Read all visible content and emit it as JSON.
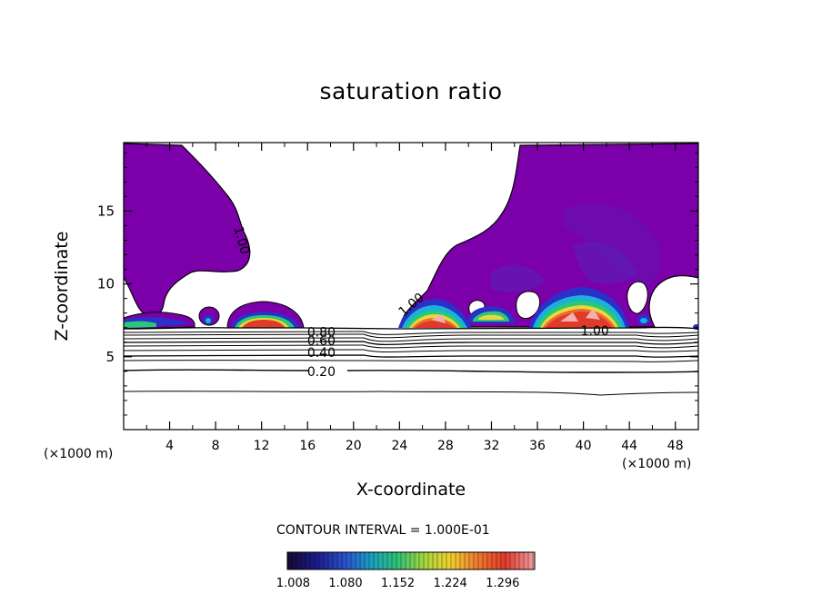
{
  "chart_data": {
    "type": "heatmap",
    "title": "saturation ratio",
    "xlabel": "X-coordinate",
    "ylabel": "Z-coordinate",
    "x_unit_left": "(×1000 m)",
    "x_unit_right": "(×1000 m)",
    "x_ticks": [
      4,
      8,
      12,
      16,
      20,
      24,
      28,
      32,
      36,
      40,
      44,
      48
    ],
    "y_ticks": [
      5,
      10,
      15
    ],
    "xlim": [
      0,
      50
    ],
    "ylim": [
      0,
      19.7
    ],
    "contour_interval_text": "CONTOUR INTERVAL = 1.000E-01",
    "contour_labels": [
      {
        "text": "1.00",
        "x": 10.3,
        "y": 13.0,
        "angle": 75
      },
      {
        "text": "1.00",
        "x": 25.0,
        "y": 8.6,
        "angle": -40
      },
      {
        "text": "1.00",
        "x": 41.0,
        "y": 6.8,
        "angle": 0
      },
      {
        "text": "0.80",
        "x": 17.2,
        "y": 6.7,
        "angle": 0
      },
      {
        "text": "0.60",
        "x": 17.2,
        "y": 6.1,
        "angle": 0
      },
      {
        "text": "0.40",
        "x": 17.2,
        "y": 5.3,
        "angle": 0
      },
      {
        "text": "0.20",
        "x": 17.2,
        "y": 4.0,
        "angle": 0
      }
    ],
    "colorbar": {
      "min": 1.0,
      "max": 1.34,
      "tick_labels": [
        "1.008",
        "1.080",
        "1.152",
        "1.224",
        "1.296"
      ],
      "colors": [
        "#1a0a3a",
        "#1b1b8c",
        "#2a55d0",
        "#1aa0c0",
        "#2ec07a",
        "#a8d838",
        "#f0d030",
        "#f08030",
        "#e03a2a",
        "#f0a0a0"
      ]
    },
    "colors": {
      "supersat": "#7b00aa",
      "band_blue": "#2a30c8",
      "band_cyan": "#1ab0d8",
      "band_green": "#28c878",
      "band_yellow": "#e8d83a",
      "band_orange": "#f06830",
      "band_red": "#e03a2a",
      "band_pink": "#f4b0b0"
    }
  }
}
